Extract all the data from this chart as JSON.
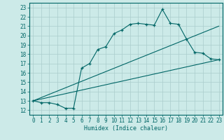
{
  "title": "",
  "xlabel": "Humidex (Indice chaleur)",
  "bg_color": "#cceae8",
  "grid_color": "#aacccc",
  "line_color": "#006666",
  "xlim": [
    -0.5,
    23.5
  ],
  "ylim": [
    11.5,
    23.5
  ],
  "xticks": [
    0,
    1,
    2,
    3,
    4,
    5,
    6,
    7,
    8,
    9,
    10,
    11,
    12,
    13,
    14,
    15,
    16,
    17,
    18,
    19,
    20,
    21,
    22,
    23
  ],
  "yticks": [
    12,
    13,
    14,
    15,
    16,
    17,
    18,
    19,
    20,
    21,
    22,
    23
  ],
  "main_x": [
    0,
    1,
    2,
    3,
    4,
    5,
    6,
    7,
    8,
    9,
    10,
    11,
    12,
    13,
    14,
    15,
    16,
    17,
    18,
    19,
    20,
    21,
    22,
    23
  ],
  "main_y": [
    13.0,
    12.8,
    12.8,
    12.6,
    12.2,
    12.2,
    16.5,
    17.0,
    18.5,
    18.8,
    20.2,
    20.6,
    21.2,
    21.3,
    21.2,
    21.1,
    22.8,
    21.3,
    21.2,
    19.6,
    18.2,
    18.1,
    17.5,
    17.4
  ],
  "line1_x": [
    0,
    23
  ],
  "line1_y": [
    13.0,
    21.0
  ],
  "line2_x": [
    0,
    23
  ],
  "line2_y": [
    13.0,
    17.4
  ],
  "xlabel_fontsize": 6,
  "tick_fontsize": 5.5
}
